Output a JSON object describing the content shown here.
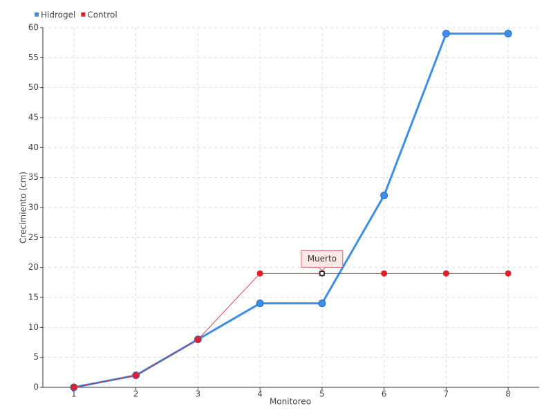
{
  "chart_data": {
    "type": "line",
    "x_label": "Monitoreo",
    "y_label": "Crecimiento (cm)",
    "categories": [
      "1",
      "2",
      "3",
      "4",
      "5",
      "6",
      "7",
      "8"
    ],
    "series": [
      {
        "name": "Hidrogel",
        "color": "#3d8ee8",
        "values": [
          0,
          2,
          8,
          14,
          14,
          32,
          59,
          59
        ]
      },
      {
        "name": "Control",
        "color": "#e0202a",
        "values": [
          0,
          2,
          8,
          19,
          19,
          19,
          19,
          19
        ]
      }
    ],
    "annotations": [
      {
        "text": "Muerto",
        "category": "5",
        "value": 19
      }
    ],
    "ylim": [
      0,
      60
    ],
    "yticks": [
      0,
      5,
      10,
      15,
      20,
      25,
      30,
      35,
      40,
      45,
      50,
      55,
      60
    ],
    "grid": true,
    "legend": "top-left"
  }
}
